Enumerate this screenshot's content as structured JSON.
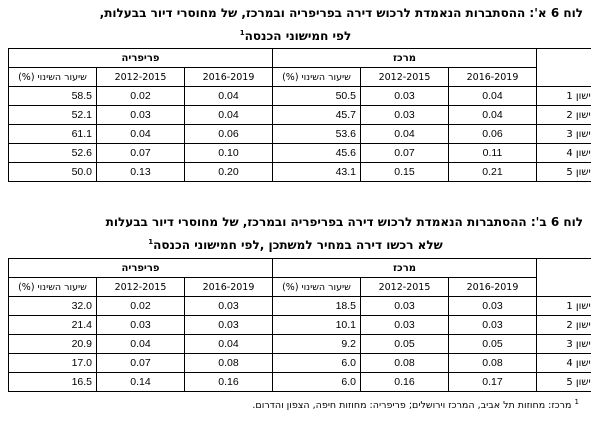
{
  "table_a": {
    "title_line1": "לוח 6 א': ההסתברות הנאמדת לרכוש דירה בפריפריה ובמרכז, של מחוסרי דיור בבעלות,",
    "title_line2": "לפי חמישוני הכנסה",
    "title_sup": "1",
    "groups": {
      "periphery": "פריפריה",
      "center": "מרכז"
    },
    "columns": {
      "rate": "שיעור השינוי (%)",
      "p1": "2012-2015",
      "p2": "2016-2019"
    },
    "rows": [
      {
        "label": "חמישון 1",
        "p_rate": "58.5",
        "p_p1": "0.02",
        "p_p2": "0.04",
        "c_rate": "50.5",
        "c_p1": "0.03",
        "c_p2": "0.04"
      },
      {
        "label": "חמישון 2",
        "p_rate": "52.1",
        "p_p1": "0.03",
        "p_p2": "0.04",
        "c_rate": "45.7",
        "c_p1": "0.03",
        "c_p2": "0.04"
      },
      {
        "label": "חמישון 3",
        "p_rate": "61.1",
        "p_p1": "0.04",
        "p_p2": "0.06",
        "c_rate": "53.6",
        "c_p1": "0.04",
        "c_p2": "0.06"
      },
      {
        "label": "חמישון 4",
        "p_rate": "52.6",
        "p_p1": "0.07",
        "p_p2": "0.10",
        "c_rate": "45.6",
        "c_p1": "0.07",
        "c_p2": "0.11"
      },
      {
        "label": "חמישון 5",
        "p_rate": "50.0",
        "p_p1": "0.13",
        "p_p2": "0.20",
        "c_rate": "43.1",
        "c_p1": "0.15",
        "c_p2": "0.21"
      }
    ]
  },
  "table_b": {
    "title_line1": "לוח 6 ב': ההסתברות הנאמדת לרכוש דירה בפריפריה ובמרכז, של מחוסרי דיור בבעלות",
    "title_line2": "שלא רכשו דירה במחיר למשתכן ,לפי חמישוני הכנסה",
    "title_sup": "1",
    "groups": {
      "periphery": "פריפריה",
      "center": "מרכז"
    },
    "columns": {
      "rate": "שיעור השינוי (%)",
      "p1": "2012-2015",
      "p2": "2016-2019"
    },
    "rows": [
      {
        "label": "חמישון 1",
        "p_rate": "32.0",
        "p_p1": "0.02",
        "p_p2": "0.03",
        "c_rate": "18.5",
        "c_p1": "0.03",
        "c_p2": "0.03"
      },
      {
        "label": "חמישון 2",
        "p_rate": "21.4",
        "p_p1": "0.03",
        "p_p2": "0.03",
        "c_rate": "10.1",
        "c_p1": "0.03",
        "c_p2": "0.03"
      },
      {
        "label": "חמישון 3",
        "p_rate": "20.9",
        "p_p1": "0.04",
        "p_p2": "0.04",
        "c_rate": "9.2",
        "c_p1": "0.05",
        "c_p2": "0.05"
      },
      {
        "label": "חמישון 4",
        "p_rate": "17.0",
        "p_p1": "0.07",
        "p_p2": "0.08",
        "c_rate": "6.0",
        "c_p1": "0.08",
        "c_p2": "0.08"
      },
      {
        "label": "חמישון 5",
        "p_rate": "16.5",
        "p_p1": "0.14",
        "p_p2": "0.16",
        "c_rate": "6.0",
        "c_p1": "0.16",
        "c_p2": "0.17"
      }
    ]
  },
  "footnote": {
    "sup": "1",
    "text": "מרכז: מחוזות תל אביב, המרכז וירושלים; פריפריה: מחוזות חיפה, הצפון והדרום."
  }
}
